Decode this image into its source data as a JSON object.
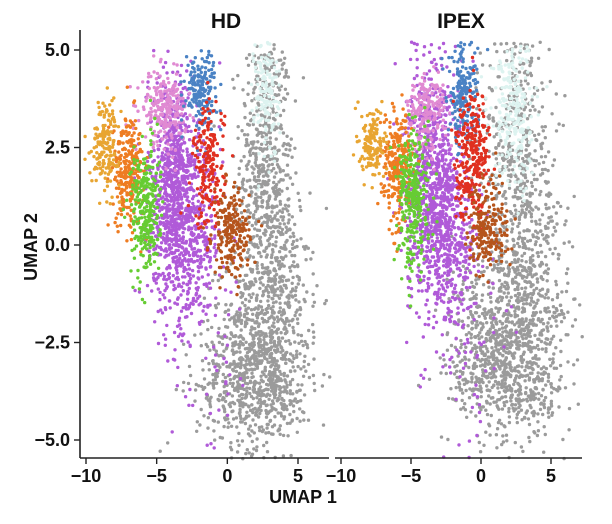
{
  "chart_data": {
    "type": "scatter",
    "xlabel": "UMAP 1",
    "ylabel": "UMAP 2",
    "xlim": [
      -10.2,
      7.4
    ],
    "ylim": [
      -5.5,
      5.2
    ],
    "xticks": [
      -10,
      -5,
      0,
      5
    ],
    "xtick_labels": [
      "−10",
      "−5",
      "0",
      "5"
    ],
    "yticks": [
      -5,
      -2.5,
      0,
      2.5,
      5
    ],
    "ytick_labels": [
      "−5.0",
      "−2.5",
      "0.0",
      "2.5",
      "5.0"
    ],
    "grid": false,
    "legend": "none",
    "panels": [
      {
        "title": "HD",
        "clusters": [
          {
            "color": "#9b9b9b",
            "blobs": [
              {
                "cx": 2.7,
                "cy": 2.2,
                "sx": 0.9,
                "sy": 1.8,
                "n": 520
              },
              {
                "cx": 3.4,
                "cy": -1.2,
                "sx": 1.2,
                "sy": 1.6,
                "n": 500
              },
              {
                "cx": 2.0,
                "cy": -3.6,
                "sx": 2.1,
                "sy": 0.8,
                "n": 560
              },
              {
                "cx": 1.4,
                "cy": -2.3,
                "sx": 1.5,
                "sy": 1.0,
                "n": 260
              }
            ]
          },
          {
            "color": "#b05ad8",
            "blobs": [
              {
                "cx": -3.8,
                "cy": 1.4,
                "sx": 0.9,
                "sy": 1.5,
                "n": 880
              },
              {
                "cx": -2.4,
                "cy": 0.2,
                "sx": 1.0,
                "sy": 1.0,
                "n": 320
              },
              {
                "cx": -1.0,
                "cy": -2.6,
                "sx": 1.6,
                "sy": 1.5,
                "n": 60
              }
            ]
          },
          {
            "color": "#e08ad2",
            "blobs": [
              {
                "cx": -4.5,
                "cy": 3.5,
                "sx": 0.8,
                "sy": 0.45,
                "n": 230
              }
            ]
          },
          {
            "color": "#4a82c4",
            "blobs": [
              {
                "cx": -1.9,
                "cy": 4.0,
                "sx": 0.55,
                "sy": 0.5,
                "n": 170
              }
            ]
          },
          {
            "color": "#ddf3f0",
            "blobs": [
              {
                "cx": 2.8,
                "cy": 3.9,
                "sx": 0.45,
                "sy": 0.9,
                "n": 150
              }
            ]
          },
          {
            "color": "#e03020",
            "blobs": [
              {
                "cx": -1.3,
                "cy": 2.0,
                "sx": 0.55,
                "sy": 0.8,
                "n": 200
              }
            ]
          },
          {
            "color": "#b5541c",
            "blobs": [
              {
                "cx": 0.3,
                "cy": 0.3,
                "sx": 0.65,
                "sy": 0.55,
                "n": 220
              }
            ]
          },
          {
            "color": "#ee7c22",
            "blobs": [
              {
                "cx": -7.0,
                "cy": 1.9,
                "sx": 0.55,
                "sy": 0.7,
                "n": 260
              }
            ]
          },
          {
            "color": "#e8a532",
            "blobs": [
              {
                "cx": -8.6,
                "cy": 2.6,
                "sx": 0.5,
                "sy": 0.55,
                "n": 170
              }
            ]
          },
          {
            "color": "#66cc33",
            "blobs": [
              {
                "cx": -5.8,
                "cy": 0.9,
                "sx": 0.5,
                "sy": 0.85,
                "n": 290
              }
            ]
          }
        ]
      },
      {
        "title": "IPEX",
        "clusters": [
          {
            "color": "#9b9b9b",
            "blobs": [
              {
                "cx": 2.6,
                "cy": 2.6,
                "sx": 1.2,
                "sy": 1.7,
                "n": 440
              },
              {
                "cx": 3.2,
                "cy": -1.2,
                "sx": 1.6,
                "sy": 1.4,
                "n": 540
              },
              {
                "cx": 1.8,
                "cy": -3.3,
                "sx": 2.1,
                "sy": 0.9,
                "n": 560
              },
              {
                "cx": 0.8,
                "cy": -2.0,
                "sx": 1.4,
                "sy": 1.0,
                "n": 240
              }
            ]
          },
          {
            "color": "#b05ad8",
            "blobs": [
              {
                "cx": -3.4,
                "cy": 1.6,
                "sx": 1.0,
                "sy": 1.6,
                "n": 880
              },
              {
                "cx": -2.0,
                "cy": 0.0,
                "sx": 1.0,
                "sy": 1.0,
                "n": 300
              },
              {
                "cx": -1.0,
                "cy": -2.4,
                "sx": 1.6,
                "sy": 1.4,
                "n": 60
              }
            ]
          },
          {
            "color": "#e08ad2",
            "blobs": [
              {
                "cx": -3.9,
                "cy": 3.4,
                "sx": 0.7,
                "sy": 0.5,
                "n": 200
              }
            ]
          },
          {
            "color": "#4a82c4",
            "blobs": [
              {
                "cx": -1.3,
                "cy": 3.9,
                "sx": 0.55,
                "sy": 0.65,
                "n": 200
              }
            ]
          },
          {
            "color": "#ddf3f0",
            "blobs": [
              {
                "cx": 2.4,
                "cy": 3.3,
                "sx": 0.75,
                "sy": 1.0,
                "n": 260
              }
            ]
          },
          {
            "color": "#e03020",
            "blobs": [
              {
                "cx": -0.6,
                "cy": 2.3,
                "sx": 0.6,
                "sy": 0.8,
                "n": 300
              }
            ]
          },
          {
            "color": "#b5541c",
            "blobs": [
              {
                "cx": 0.5,
                "cy": 0.4,
                "sx": 0.7,
                "sy": 0.6,
                "n": 200
              }
            ]
          },
          {
            "color": "#ee7c22",
            "blobs": [
              {
                "cx": -6.0,
                "cy": 2.0,
                "sx": 0.55,
                "sy": 0.7,
                "n": 260
              }
            ]
          },
          {
            "color": "#e8a532",
            "blobs": [
              {
                "cx": -7.7,
                "cy": 2.6,
                "sx": 0.45,
                "sy": 0.45,
                "n": 150
              }
            ]
          },
          {
            "color": "#66cc33",
            "blobs": [
              {
                "cx": -4.8,
                "cy": 1.2,
                "sx": 0.55,
                "sy": 0.9,
                "n": 300
              }
            ]
          }
        ]
      }
    ]
  }
}
